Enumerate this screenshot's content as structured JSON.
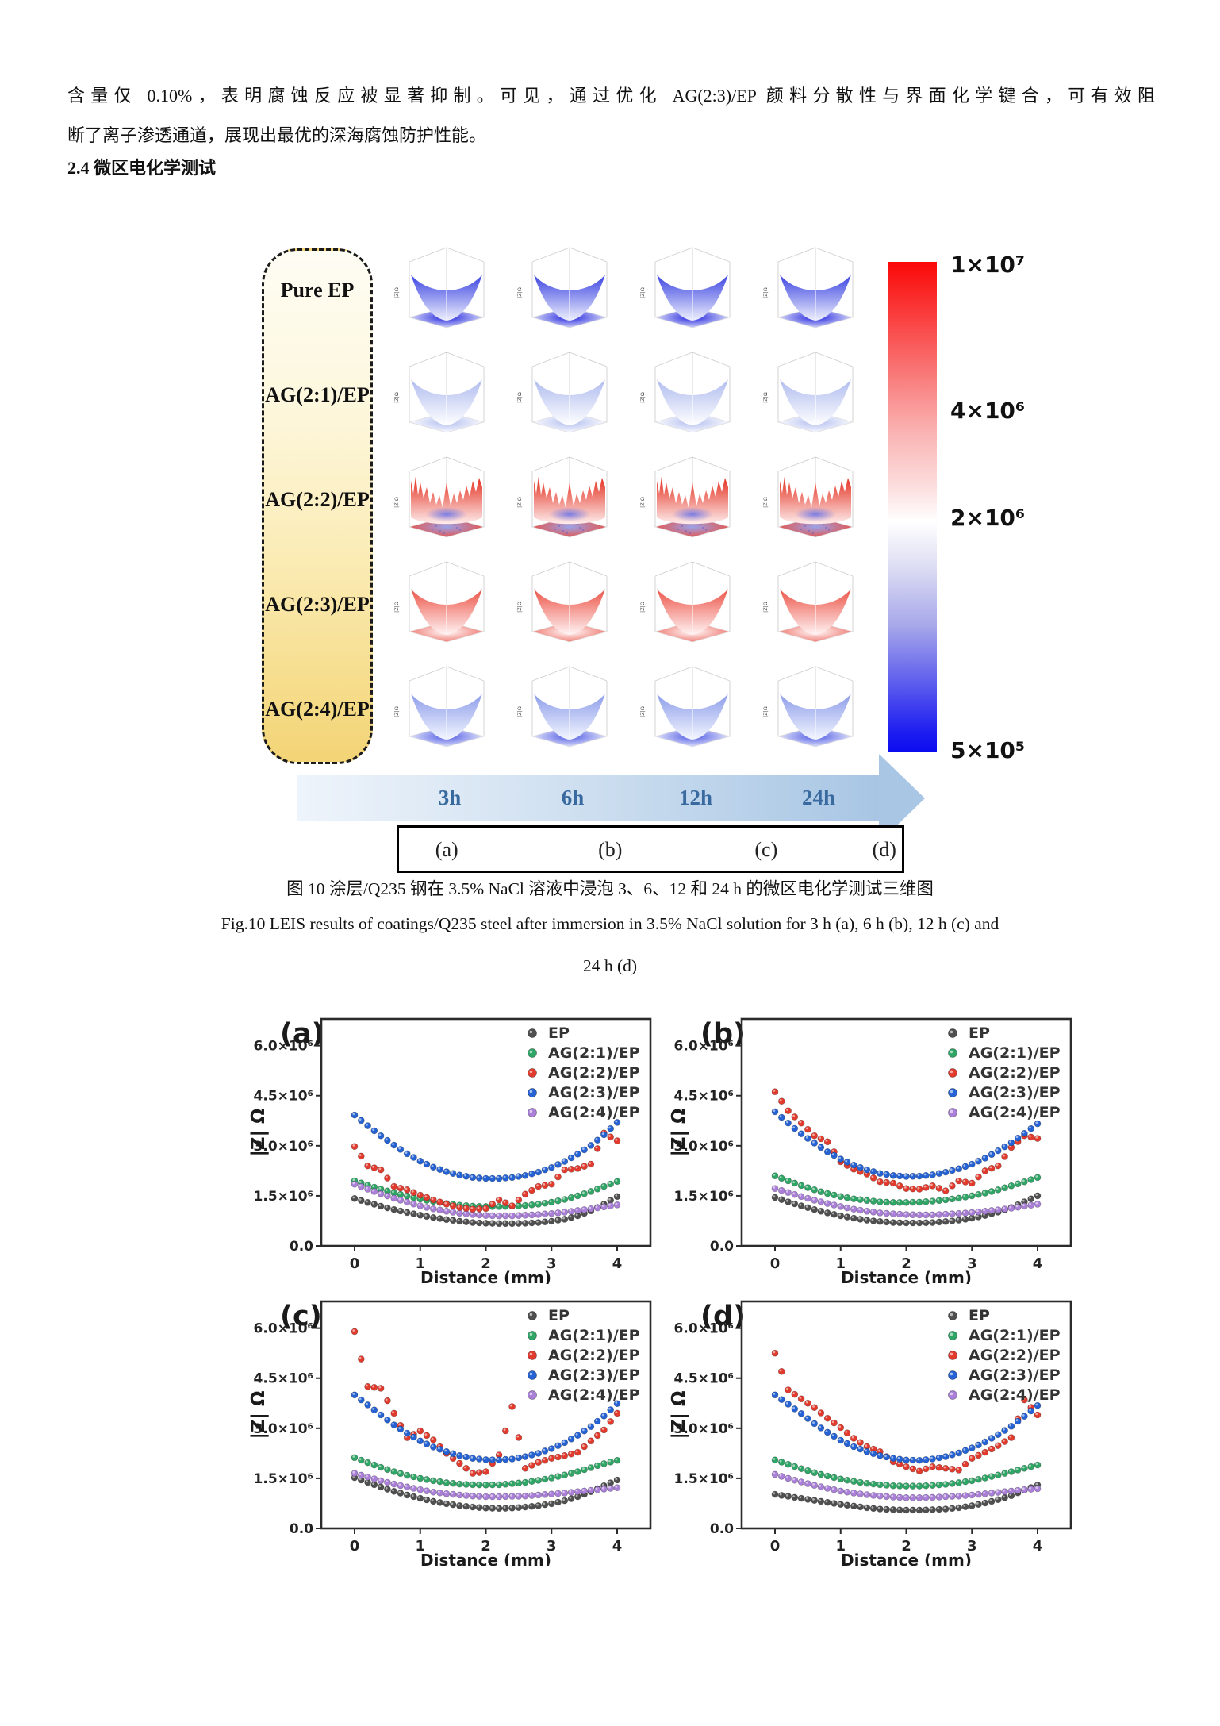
{
  "page": {
    "paragraph": {
      "line1": "含量仅 0.10%，表明腐蚀反应被显著抑制。可见，通过优化 AG(2:3)/EP 颜料分散性与界面化学键合，可有效阻",
      "line2": "断了离子渗透通道，展现出最优的深海腐蚀防护性能。"
    },
    "section_heading": "2.4 微区电化学测试"
  },
  "figure10": {
    "rows": [
      {
        "label": "Pure EP",
        "style": "bowl",
        "wallTop": "#4d55e4",
        "wallBottom": "#eef0fd",
        "floorCenter": "#2121dd",
        "floorEdge": "#e4e8fb",
        "floorDots": false,
        "glow": false
      },
      {
        "label": "AG(2:1)/EP",
        "style": "bowl",
        "wallTop": "#b7c2f0",
        "wallBottom": "#ffffff",
        "floorCenter": "#b3bfef",
        "floorEdge": "#ffffff",
        "floorDots": false,
        "glow": false
      },
      {
        "label": "AG(2:2)/EP",
        "style": "spiky",
        "wallTop": "#e63f30",
        "wallBottom": "#fdecec",
        "floorCenter": "#9aa3ea",
        "floorEdge": "#ea5043",
        "floorDots": true,
        "glow": true
      },
      {
        "label": "AG(2:3)/EP",
        "style": "bowl",
        "wallTop": "#ee6459",
        "wallBottom": "#fff4f4",
        "floorCenter": "#ffffff",
        "floorEdge": "#ef7169",
        "floorDots": false,
        "glow": false
      },
      {
        "label": "AG(2:4)/EP",
        "style": "bowl",
        "wallTop": "#96a5ec",
        "wallBottom": "#f3f6fe",
        "floorCenter": "#4f59e3",
        "floorEdge": "#edf0fc",
        "floorDots": false,
        "glow": false
      }
    ],
    "axis_label_3d": "|Z|Ω",
    "time_labels": [
      "3h",
      "6h",
      "12h",
      "24h"
    ],
    "panel_letters": [
      "(a)",
      "(b)",
      "(c)",
      "(d)"
    ],
    "colorbar": {
      "labels": [
        "1×10⁷",
        "4×10⁶",
        "2×10⁶",
        "5×10⁵"
      ],
      "top_color": "#fb0808",
      "bottom_color": "#0a0af0"
    },
    "caption_cn": "图 10 涂层/Q235 钢在 3.5% NaCl 溶液中浸泡 3、6、12 和 24 h 的微区电化学测试三维图",
    "caption_en_line1": "Fig.10 LEIS results of coatings/Q235 steel after immersion in 3.5% NaCl solution for 3 h (a), 6 h (b), 12 h (c) and",
    "caption_en_line2": "24 h (d)"
  },
  "chart_data": [
    {
      "type": "scatter",
      "panel": "(a)",
      "xlabel": "Distance (mm)",
      "ylabel": "|Z| Ω",
      "x_ticks": [
        0,
        1,
        2,
        3,
        4
      ],
      "y_tick_labels": [
        "0.0",
        "1.5×10⁶",
        "3.0×10⁶",
        "4.5×10⁶",
        "6.0×10⁶"
      ],
      "y_tick_values_x1e6": [
        0,
        1.5,
        3.0,
        4.5,
        6.0
      ],
      "ylim_x1e6": [
        0,
        6.8
      ],
      "grid": false,
      "legend_position": "top-right",
      "x": [
        0,
        0.2,
        0.4,
        0.6,
        0.8,
        1.0,
        1.2,
        1.4,
        1.6,
        1.8,
        2.0,
        2.2,
        2.4,
        2.6,
        2.8,
        3.0,
        3.2,
        3.4,
        3.6,
        3.8,
        4.0
      ],
      "series": [
        {
          "name": "EP",
          "color": "#4f4f4f",
          "values_x1e6": [
            1.42,
            1.3,
            1.19,
            1.09,
            1.0,
            0.92,
            0.85,
            0.79,
            0.74,
            0.7,
            0.68,
            0.67,
            0.67,
            0.68,
            0.7,
            0.74,
            0.8,
            0.9,
            1.05,
            1.25,
            1.48
          ]
        },
        {
          "name": "AG(2:1)/EP",
          "color": "#2fa566",
          "values_x1e6": [
            1.95,
            1.82,
            1.7,
            1.59,
            1.49,
            1.4,
            1.33,
            1.27,
            1.22,
            1.19,
            1.18,
            1.18,
            1.19,
            1.21,
            1.25,
            1.31,
            1.39,
            1.5,
            1.63,
            1.78,
            1.93
          ]
        },
        {
          "name": "AG(2:2)/EP",
          "color": "#e23b2e",
          "values_x1e6": [
            2.98,
            2.4,
            2.28,
            1.78,
            1.68,
            1.52,
            1.38,
            1.25,
            1.15,
            1.1,
            1.12,
            1.38,
            1.2,
            1.55,
            1.78,
            1.85,
            2.28,
            2.32,
            2.45,
            3.38,
            3.15
          ]
        },
        {
          "name": "AG(2:3)/EP",
          "color": "#2562d4",
          "values_x1e6": [
            3.92,
            3.6,
            3.3,
            3.02,
            2.76,
            2.54,
            2.36,
            2.22,
            2.12,
            2.05,
            2.02,
            2.02,
            2.05,
            2.11,
            2.21,
            2.35,
            2.53,
            2.75,
            3.01,
            3.33,
            3.7
          ]
        },
        {
          "name": "AG(2:4)/EP",
          "color": "#a97fd8",
          "values_x1e6": [
            1.85,
            1.7,
            1.56,
            1.43,
            1.31,
            1.2,
            1.11,
            1.04,
            0.98,
            0.94,
            0.91,
            0.9,
            0.9,
            0.92,
            0.94,
            0.97,
            1.01,
            1.06,
            1.11,
            1.17,
            1.23
          ]
        }
      ]
    },
    {
      "type": "scatter",
      "panel": "(b)",
      "xlabel": "Distance (mm)",
      "ylabel": "|Z| Ω",
      "x_ticks": [
        0,
        1,
        2,
        3,
        4
      ],
      "y_tick_labels": [
        "0.0",
        "1.5×10⁶",
        "3.0×10⁶",
        "4.5×10⁶",
        "6.0×10⁶"
      ],
      "y_tick_values_x1e6": [
        0,
        1.5,
        3.0,
        4.5,
        6.0
      ],
      "ylim_x1e6": [
        0,
        6.8
      ],
      "grid": false,
      "legend_position": "top-right",
      "x": [
        0,
        0.2,
        0.4,
        0.6,
        0.8,
        1.0,
        1.2,
        1.4,
        1.6,
        1.8,
        2.0,
        2.2,
        2.4,
        2.6,
        2.8,
        3.0,
        3.2,
        3.4,
        3.6,
        3.8,
        4.0
      ],
      "series": [
        {
          "name": "EP",
          "color": "#4f4f4f",
          "values_x1e6": [
            1.45,
            1.32,
            1.2,
            1.09,
            0.99,
            0.9,
            0.83,
            0.77,
            0.73,
            0.7,
            0.69,
            0.69,
            0.7,
            0.73,
            0.77,
            0.83,
            0.91,
            1.01,
            1.15,
            1.32,
            1.5
          ]
        },
        {
          "name": "AG(2:1)/EP",
          "color": "#2fa566",
          "values_x1e6": [
            2.1,
            1.95,
            1.81,
            1.68,
            1.57,
            1.48,
            1.41,
            1.36,
            1.32,
            1.3,
            1.3,
            1.31,
            1.34,
            1.38,
            1.43,
            1.5,
            1.58,
            1.68,
            1.8,
            1.92,
            2.05
          ]
        },
        {
          "name": "AG(2:2)/EP",
          "color": "#e23b2e",
          "values_x1e6": [
            4.62,
            4.05,
            3.68,
            3.3,
            3.12,
            2.52,
            2.3,
            2.15,
            1.92,
            1.88,
            1.72,
            1.7,
            1.8,
            1.65,
            1.95,
            1.88,
            2.25,
            2.4,
            2.95,
            3.3,
            3.22
          ]
        },
        {
          "name": "AG(2:3)/EP",
          "color": "#2562d4",
          "values_x1e6": [
            4.02,
            3.68,
            3.36,
            3.08,
            2.82,
            2.6,
            2.42,
            2.28,
            2.17,
            2.11,
            2.08,
            2.09,
            2.13,
            2.21,
            2.31,
            2.45,
            2.63,
            2.85,
            3.09,
            3.37,
            3.66
          ]
        },
        {
          "name": "AG(2:4)/EP",
          "color": "#a97fd8",
          "values_x1e6": [
            1.72,
            1.6,
            1.48,
            1.37,
            1.27,
            1.18,
            1.1,
            1.04,
            0.99,
            0.96,
            0.94,
            0.93,
            0.93,
            0.95,
            0.97,
            1.0,
            1.04,
            1.08,
            1.13,
            1.19,
            1.25
          ]
        }
      ]
    },
    {
      "type": "scatter",
      "panel": "(c)",
      "xlabel": "Distance (mm)",
      "ylabel": "|Z| Ω",
      "x_ticks": [
        0,
        1,
        2,
        3,
        4
      ],
      "y_tick_labels": [
        "0.0",
        "1.5×10⁶",
        "3.0×10⁶",
        "4.5×10⁶",
        "6.0×10⁶"
      ],
      "y_tick_values_x1e6": [
        0,
        1.5,
        3.0,
        4.5,
        6.0
      ],
      "ylim_x1e6": [
        0,
        6.8
      ],
      "grid": false,
      "legend_position": "top-right",
      "x": [
        0,
        0.2,
        0.4,
        0.6,
        0.8,
        1.0,
        1.2,
        1.4,
        1.6,
        1.8,
        2.0,
        2.2,
        2.4,
        2.6,
        2.8,
        3.0,
        3.2,
        3.4,
        3.6,
        3.8,
        4.0
      ],
      "series": [
        {
          "name": "EP",
          "color": "#4f4f4f",
          "values_x1e6": [
            1.52,
            1.38,
            1.24,
            1.11,
            1.0,
            0.9,
            0.81,
            0.74,
            0.68,
            0.64,
            0.61,
            0.6,
            0.61,
            0.64,
            0.68,
            0.74,
            0.83,
            0.95,
            1.1,
            1.28,
            1.45
          ]
        },
        {
          "name": "AG(2:1)/EP",
          "color": "#2fa566",
          "values_x1e6": [
            2.12,
            1.97,
            1.83,
            1.7,
            1.59,
            1.5,
            1.43,
            1.37,
            1.33,
            1.31,
            1.3,
            1.31,
            1.34,
            1.38,
            1.44,
            1.51,
            1.6,
            1.7,
            1.82,
            1.94,
            2.04
          ]
        },
        {
          "name": "AG(2:2)/EP",
          "color": "#e23b2e",
          "values_x1e6": [
            5.9,
            4.25,
            4.2,
            3.45,
            2.72,
            2.92,
            2.65,
            2.25,
            1.95,
            1.65,
            1.7,
            2.2,
            3.65,
            1.8,
            1.98,
            2.1,
            2.18,
            2.28,
            2.62,
            2.95,
            3.45
          ]
        },
        {
          "name": "AG(2:3)/EP",
          "color": "#2562d4",
          "values_x1e6": [
            4.0,
            3.7,
            3.4,
            3.1,
            2.85,
            2.62,
            2.44,
            2.3,
            2.18,
            2.1,
            2.06,
            2.05,
            2.08,
            2.15,
            2.25,
            2.39,
            2.57,
            2.79,
            3.05,
            3.37,
            3.74
          ]
        },
        {
          "name": "AG(2:4)/EP",
          "color": "#a97fd8",
          "values_x1e6": [
            1.65,
            1.54,
            1.43,
            1.33,
            1.24,
            1.16,
            1.09,
            1.04,
            1.0,
            0.97,
            0.95,
            0.95,
            0.96,
            0.97,
            1.0,
            1.03,
            1.06,
            1.1,
            1.14,
            1.18,
            1.22
          ]
        }
      ]
    },
    {
      "type": "scatter",
      "panel": "(d)",
      "xlabel": "Distance (mm)",
      "ylabel": "|Z| Ω",
      "x_ticks": [
        0,
        1,
        2,
        3,
        4
      ],
      "y_tick_labels": [
        "0.0",
        "1.5×10⁶",
        "3.0×10⁶",
        "4.5×10⁶",
        "6.0×10⁶"
      ],
      "y_tick_values_x1e6": [
        0,
        1.5,
        3.0,
        4.5,
        6.0
      ],
      "ylim_x1e6": [
        0,
        6.8
      ],
      "grid": false,
      "legend_position": "top-right",
      "x": [
        0,
        0.2,
        0.4,
        0.6,
        0.8,
        1.0,
        1.2,
        1.4,
        1.6,
        1.8,
        2.0,
        2.2,
        2.4,
        2.6,
        2.8,
        3.0,
        3.2,
        3.4,
        3.6,
        3.8,
        4.0
      ],
      "series": [
        {
          "name": "EP",
          "color": "#4f4f4f",
          "values_x1e6": [
            1.02,
            0.96,
            0.9,
            0.84,
            0.78,
            0.72,
            0.67,
            0.62,
            0.58,
            0.56,
            0.55,
            0.55,
            0.56,
            0.58,
            0.62,
            0.68,
            0.76,
            0.86,
            0.98,
            1.15,
            1.3
          ]
        },
        {
          "name": "AG(2:1)/EP",
          "color": "#2fa566",
          "values_x1e6": [
            2.05,
            1.92,
            1.79,
            1.67,
            1.57,
            1.48,
            1.41,
            1.35,
            1.31,
            1.28,
            1.27,
            1.27,
            1.29,
            1.32,
            1.37,
            1.43,
            1.51,
            1.6,
            1.7,
            1.8,
            1.9
          ]
        },
        {
          "name": "AG(2:2)/EP",
          "color": "#e23b2e",
          "values_x1e6": [
            5.25,
            4.15,
            3.88,
            3.62,
            3.3,
            3.02,
            2.7,
            2.45,
            2.3,
            2.0,
            1.85,
            1.72,
            1.85,
            1.8,
            1.75,
            2.1,
            2.28,
            2.48,
            2.72,
            3.85,
            3.4
          ]
        },
        {
          "name": "AG(2:3)/EP",
          "color": "#2562d4",
          "values_x1e6": [
            4.0,
            3.72,
            3.44,
            3.14,
            2.88,
            2.64,
            2.45,
            2.3,
            2.18,
            2.1,
            2.05,
            2.04,
            2.08,
            2.15,
            2.26,
            2.41,
            2.59,
            2.81,
            3.06,
            3.36,
            3.68
          ]
        },
        {
          "name": "AG(2:4)/EP",
          "color": "#a97fd8",
          "values_x1e6": [
            1.62,
            1.5,
            1.39,
            1.29,
            1.2,
            1.12,
            1.06,
            1.01,
            0.97,
            0.94,
            0.92,
            0.92,
            0.93,
            0.95,
            0.97,
            1.0,
            1.04,
            1.08,
            1.12,
            1.16,
            1.19
          ]
        }
      ]
    }
  ]
}
